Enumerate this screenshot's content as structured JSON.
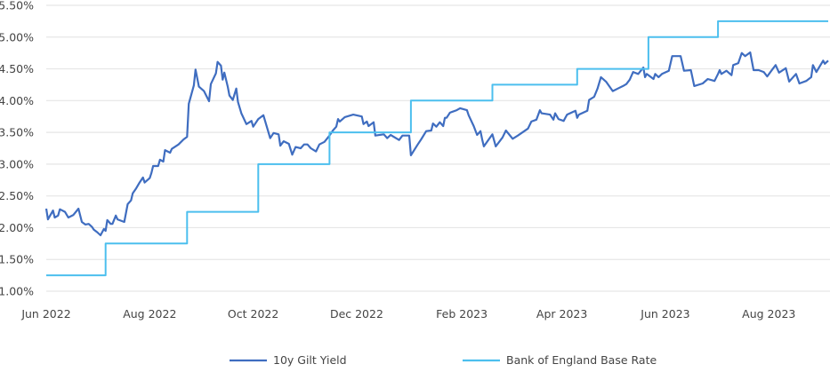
{
  "chart_data": {
    "type": "line",
    "title": "",
    "xlabel": "",
    "ylabel": "",
    "x_type": "date",
    "xlim": [
      "2022-06-01",
      "2023-09-05"
    ],
    "ylim": [
      1.0,
      5.5
    ],
    "y_ticks": [
      1.0,
      1.5,
      2.0,
      2.5,
      3.0,
      3.5,
      4.0,
      4.5,
      5.0,
      5.5
    ],
    "y_tick_labels": [
      "1.00%",
      "1.50%",
      "2.00%",
      "2.50%",
      "3.00%",
      "3.50%",
      "4.00%",
      "4.50%",
      "5.00%",
      "5.50%"
    ],
    "x_ticks": [
      "2022-06-01",
      "2022-08-01",
      "2022-10-01",
      "2022-12-01",
      "2023-02-01",
      "2023-04-01",
      "2023-06-01",
      "2023-08-01"
    ],
    "x_tick_labels": [
      "Jun 2022",
      "Aug 2022",
      "Oct 2022",
      "Dec 2022",
      "Feb 2023",
      "Apr 2023",
      "Jun 2023",
      "Aug 2023"
    ],
    "grid": "horizontal",
    "legend_placement": "bottom",
    "series": [
      {
        "name": "10y Gilt Yield",
        "color": "#3f6dc0",
        "step": false,
        "points": [
          [
            "2022-06-01",
            2.3
          ],
          [
            "2022-06-02",
            2.13
          ],
          [
            "2022-06-05",
            2.27
          ],
          [
            "2022-06-06",
            2.16
          ],
          [
            "2022-06-08",
            2.19
          ],
          [
            "2022-06-09",
            2.29
          ],
          [
            "2022-06-12",
            2.25
          ],
          [
            "2022-06-14",
            2.16
          ],
          [
            "2022-06-17",
            2.2
          ],
          [
            "2022-06-20",
            2.3
          ],
          [
            "2022-06-22",
            2.09
          ],
          [
            "2022-06-24",
            2.05
          ],
          [
            "2022-06-26",
            2.06
          ],
          [
            "2022-06-28",
            2.01
          ],
          [
            "2022-06-29",
            1.97
          ],
          [
            "2022-07-01",
            1.93
          ],
          [
            "2022-07-03",
            1.88
          ],
          [
            "2022-07-05",
            1.98
          ],
          [
            "2022-07-06",
            1.95
          ],
          [
            "2022-07-07",
            2.12
          ],
          [
            "2022-07-09",
            2.06
          ],
          [
            "2022-07-10",
            2.06
          ],
          [
            "2022-07-12",
            2.19
          ],
          [
            "2022-07-13",
            2.13
          ],
          [
            "2022-07-17",
            2.09
          ],
          [
            "2022-07-19",
            2.37
          ],
          [
            "2022-07-21",
            2.43
          ],
          [
            "2022-07-22",
            2.54
          ],
          [
            "2022-07-24",
            2.62
          ],
          [
            "2022-07-26",
            2.71
          ],
          [
            "2022-07-28",
            2.79
          ],
          [
            "2022-07-29",
            2.71
          ],
          [
            "2022-08-01",
            2.78
          ],
          [
            "2022-08-02",
            2.86
          ],
          [
            "2022-08-03",
            2.97
          ],
          [
            "2022-08-06",
            2.97
          ],
          [
            "2022-08-07",
            3.07
          ],
          [
            "2022-08-09",
            3.04
          ],
          [
            "2022-08-10",
            3.22
          ],
          [
            "2022-08-13",
            3.18
          ],
          [
            "2022-08-14",
            3.24
          ],
          [
            "2022-08-18",
            3.31
          ],
          [
            "2022-08-21",
            3.39
          ],
          [
            "2022-08-23",
            3.43
          ],
          [
            "2022-08-24",
            3.95
          ],
          [
            "2022-08-27",
            4.24
          ],
          [
            "2022-08-28",
            4.49
          ],
          [
            "2022-08-30",
            4.22
          ],
          [
            "2022-09-02",
            4.15
          ],
          [
            "2022-09-05",
            3.99
          ],
          [
            "2022-09-06",
            4.26
          ],
          [
            "2022-09-09",
            4.43
          ],
          [
            "2022-09-10",
            4.61
          ],
          [
            "2022-09-12",
            4.55
          ],
          [
            "2022-09-13",
            4.33
          ],
          [
            "2022-09-14",
            4.44
          ],
          [
            "2022-09-16",
            4.22
          ],
          [
            "2022-09-17",
            4.08
          ],
          [
            "2022-09-19",
            4.01
          ],
          [
            "2022-09-21",
            4.19
          ],
          [
            "2022-09-22",
            3.98
          ],
          [
            "2022-09-24",
            3.8
          ],
          [
            "2022-09-27",
            3.63
          ],
          [
            "2022-09-30",
            3.68
          ],
          [
            "2022-10-01",
            3.59
          ],
          [
            "2022-10-04",
            3.71
          ],
          [
            "2022-10-07",
            3.77
          ],
          [
            "2022-10-09",
            3.59
          ],
          [
            "2022-10-11",
            3.41
          ],
          [
            "2022-10-13",
            3.49
          ],
          [
            "2022-10-16",
            3.47
          ],
          [
            "2022-10-17",
            3.29
          ],
          [
            "2022-10-19",
            3.36
          ],
          [
            "2022-10-22",
            3.32
          ],
          [
            "2022-10-24",
            3.15
          ],
          [
            "2022-10-26",
            3.27
          ],
          [
            "2022-10-29",
            3.25
          ],
          [
            "2022-10-31",
            3.31
          ],
          [
            "2022-11-02",
            3.31
          ],
          [
            "2022-11-04",
            3.25
          ],
          [
            "2022-11-07",
            3.2
          ],
          [
            "2022-11-09",
            3.31
          ],
          [
            "2022-11-12",
            3.35
          ],
          [
            "2022-11-15",
            3.45
          ],
          [
            "2022-11-17",
            3.53
          ],
          [
            "2022-11-19",
            3.59
          ],
          [
            "2022-11-20",
            3.71
          ],
          [
            "2022-11-21",
            3.67
          ],
          [
            "2022-11-24",
            3.74
          ],
          [
            "2022-11-29",
            3.78
          ],
          [
            "2022-12-04",
            3.75
          ],
          [
            "2022-12-05",
            3.63
          ],
          [
            "2022-12-07",
            3.67
          ],
          [
            "2022-12-08",
            3.6
          ],
          [
            "2022-12-11",
            3.66
          ],
          [
            "2022-12-12",
            3.45
          ],
          [
            "2022-12-17",
            3.47
          ],
          [
            "2022-12-19",
            3.41
          ],
          [
            "2022-12-21",
            3.46
          ],
          [
            "2022-12-26",
            3.38
          ],
          [
            "2022-12-28",
            3.45
          ],
          [
            "2023-01-01",
            3.45
          ],
          [
            "2023-01-02",
            3.14
          ],
          [
            "2023-01-06",
            3.31
          ],
          [
            "2023-01-08",
            3.39
          ],
          [
            "2023-01-11",
            3.52
          ],
          [
            "2023-01-14",
            3.53
          ],
          [
            "2023-01-15",
            3.64
          ],
          [
            "2023-01-17",
            3.59
          ],
          [
            "2023-01-19",
            3.66
          ],
          [
            "2023-01-21",
            3.6
          ],
          [
            "2023-01-22",
            3.73
          ],
          [
            "2023-01-23",
            3.73
          ],
          [
            "2023-01-25",
            3.81
          ],
          [
            "2023-01-29",
            3.85
          ],
          [
            "2023-01-31",
            3.88
          ],
          [
            "2023-02-04",
            3.85
          ],
          [
            "2023-02-05",
            3.77
          ],
          [
            "2023-02-08",
            3.6
          ],
          [
            "2023-02-10",
            3.46
          ],
          [
            "2023-02-12",
            3.52
          ],
          [
            "2023-02-13",
            3.39
          ],
          [
            "2023-02-14",
            3.28
          ],
          [
            "2023-02-19",
            3.47
          ],
          [
            "2023-02-21",
            3.28
          ],
          [
            "2023-02-25",
            3.42
          ],
          [
            "2023-02-27",
            3.53
          ],
          [
            "2023-03-03",
            3.4
          ],
          [
            "2023-03-06",
            3.45
          ],
          [
            "2023-03-12",
            3.56
          ],
          [
            "2023-03-14",
            3.67
          ],
          [
            "2023-03-17",
            3.7
          ],
          [
            "2023-03-19",
            3.85
          ],
          [
            "2023-03-20",
            3.8
          ],
          [
            "2023-03-25",
            3.78
          ],
          [
            "2023-03-27",
            3.7
          ],
          [
            "2023-03-28",
            3.8
          ],
          [
            "2023-03-30",
            3.71
          ],
          [
            "2023-04-02",
            3.68
          ],
          [
            "2023-04-04",
            3.78
          ],
          [
            "2023-04-09",
            3.84
          ],
          [
            "2023-04-10",
            3.73
          ],
          [
            "2023-04-11",
            3.78
          ],
          [
            "2023-04-16",
            3.84
          ],
          [
            "2023-04-17",
            4.01
          ],
          [
            "2023-04-20",
            4.06
          ],
          [
            "2023-04-22",
            4.19
          ],
          [
            "2023-04-24",
            4.37
          ],
          [
            "2023-04-27",
            4.3
          ],
          [
            "2023-05-01",
            4.15
          ],
          [
            "2023-05-04",
            4.19
          ],
          [
            "2023-05-07",
            4.23
          ],
          [
            "2023-05-09",
            4.26
          ],
          [
            "2023-05-11",
            4.33
          ],
          [
            "2023-05-13",
            4.45
          ],
          [
            "2023-05-16",
            4.42
          ],
          [
            "2023-05-19",
            4.52
          ],
          [
            "2023-05-20",
            4.37
          ],
          [
            "2023-05-21",
            4.42
          ],
          [
            "2023-05-25",
            4.34
          ],
          [
            "2023-05-26",
            4.42
          ],
          [
            "2023-05-28",
            4.37
          ],
          [
            "2023-05-30",
            4.42
          ],
          [
            "2023-06-03",
            4.47
          ],
          [
            "2023-06-05",
            4.7
          ],
          [
            "2023-06-10",
            4.7
          ],
          [
            "2023-06-12",
            4.47
          ],
          [
            "2023-06-16",
            4.48
          ],
          [
            "2023-06-18",
            4.23
          ],
          [
            "2023-06-23",
            4.27
          ],
          [
            "2023-06-26",
            4.34
          ],
          [
            "2023-06-30",
            4.31
          ],
          [
            "2023-07-02",
            4.42
          ],
          [
            "2023-07-03",
            4.48
          ],
          [
            "2023-07-04",
            4.42
          ],
          [
            "2023-07-07",
            4.47
          ],
          [
            "2023-07-10",
            4.4
          ],
          [
            "2023-07-11",
            4.56
          ],
          [
            "2023-07-14",
            4.59
          ],
          [
            "2023-07-16",
            4.75
          ],
          [
            "2023-07-18",
            4.7
          ],
          [
            "2023-07-21",
            4.76
          ],
          [
            "2023-07-23",
            4.48
          ],
          [
            "2023-07-26",
            4.48
          ],
          [
            "2023-07-29",
            4.45
          ],
          [
            "2023-07-31",
            4.38
          ],
          [
            "2023-08-03",
            4.49
          ],
          [
            "2023-08-05",
            4.56
          ],
          [
            "2023-08-07",
            4.44
          ],
          [
            "2023-08-11",
            4.51
          ],
          [
            "2023-08-13",
            4.3
          ],
          [
            "2023-08-17",
            4.42
          ],
          [
            "2023-08-19",
            4.27
          ],
          [
            "2023-08-23",
            4.31
          ],
          [
            "2023-08-26",
            4.37
          ],
          [
            "2023-08-27",
            4.56
          ],
          [
            "2023-08-29",
            4.45
          ],
          [
            "2023-08-31",
            4.54
          ],
          [
            "2023-09-02",
            4.63
          ],
          [
            "2023-09-03",
            4.58
          ],
          [
            "2023-09-05",
            4.63
          ]
        ]
      },
      {
        "name": "Bank of England Base Rate",
        "color": "#4cbfee",
        "step": true,
        "points": [
          [
            "2022-06-01",
            1.25
          ],
          [
            "2022-07-06",
            1.75
          ],
          [
            "2022-08-23",
            2.25
          ],
          [
            "2022-10-04",
            3.0
          ],
          [
            "2022-11-15",
            3.5
          ],
          [
            "2023-01-02",
            4.0
          ],
          [
            "2023-02-19",
            4.25
          ],
          [
            "2023-04-10",
            4.5
          ],
          [
            "2023-05-22",
            5.0
          ],
          [
            "2023-07-02",
            5.25
          ],
          [
            "2023-09-05",
            5.25
          ]
        ]
      }
    ]
  }
}
